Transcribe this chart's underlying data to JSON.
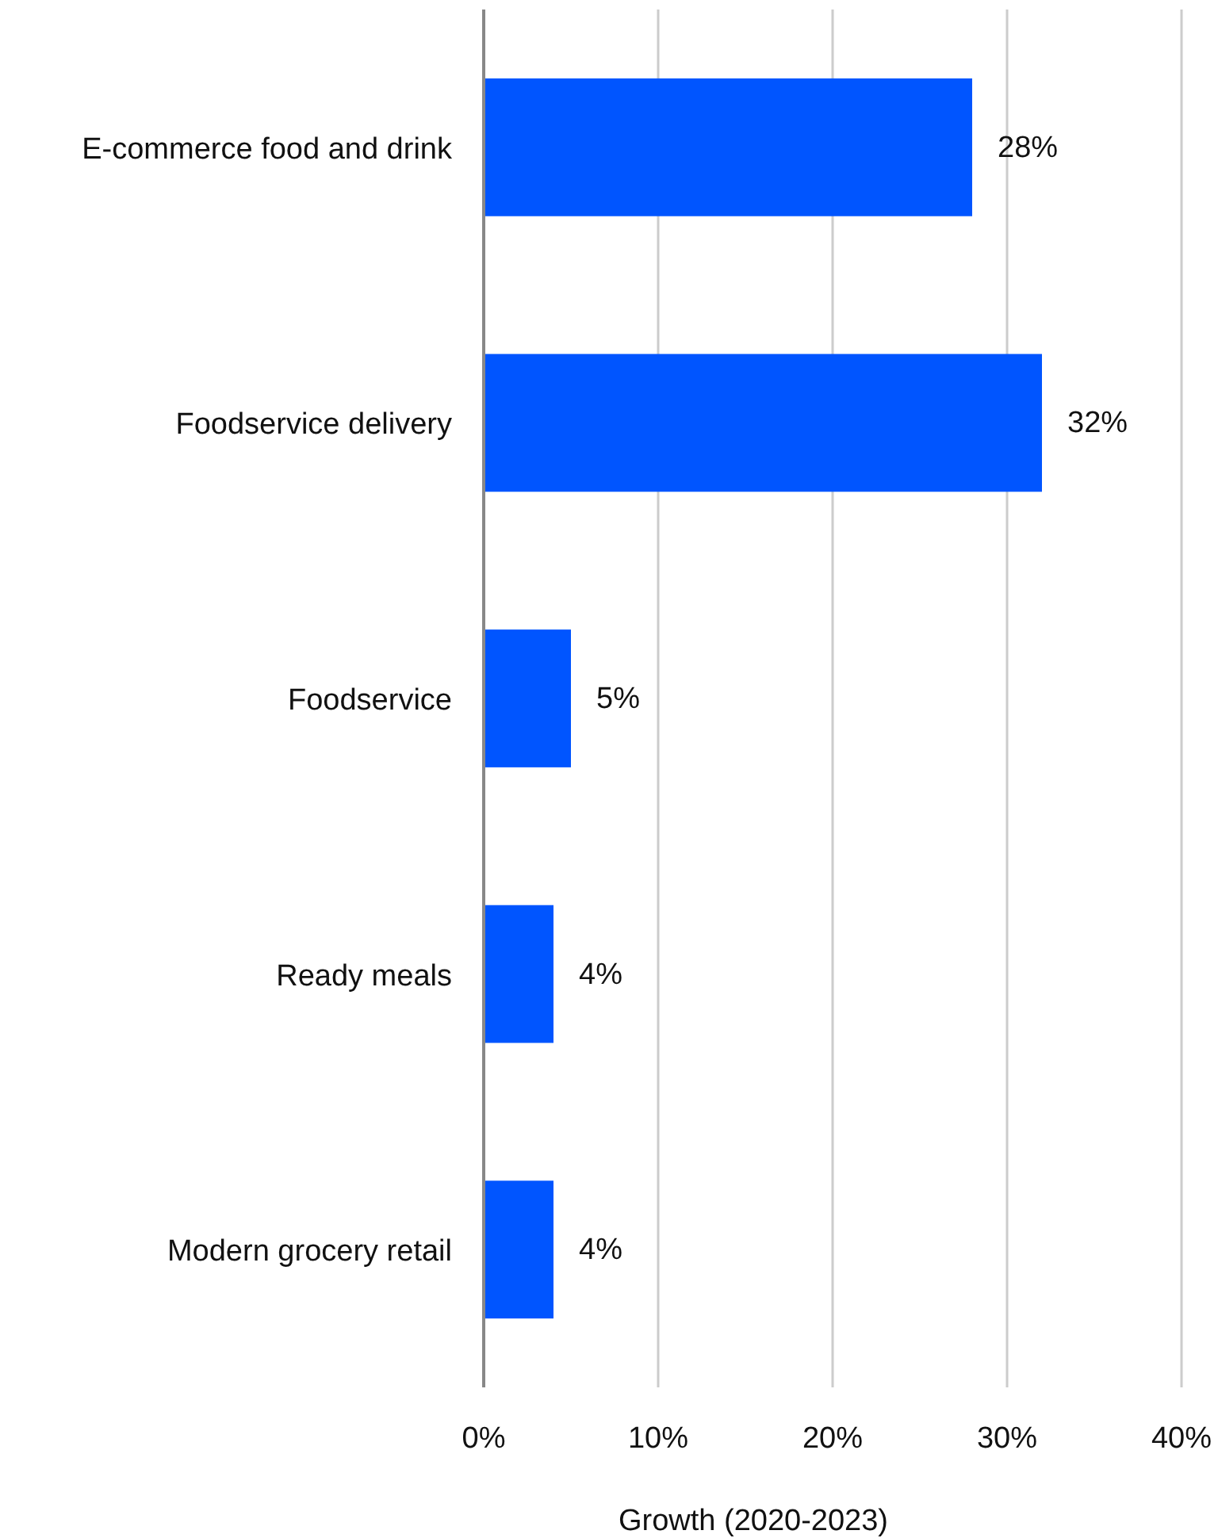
{
  "chart_data": {
    "type": "bar",
    "orientation": "horizontal",
    "xlabel": "Growth (2020-2023)",
    "categories": [
      "E-commerce food and drink",
      "Foodservice delivery",
      "Foodservice",
      "Ready meals",
      "Modern grocery retail"
    ],
    "values": [
      28,
      32,
      5,
      4,
      4
    ],
    "color": "#0055ff",
    "value_labels": [
      "28%",
      "32%",
      "5%",
      "4%",
      "4%"
    ],
    "xlim": [
      0,
      40
    ],
    "xticks": [
      {
        "value": 0,
        "label": "0%"
      },
      {
        "value": 10,
        "label": "10%"
      },
      {
        "value": 20,
        "label": "20%"
      },
      {
        "value": 30,
        "label": "30%"
      },
      {
        "value": 40,
        "label": "40%"
      }
    ],
    "grid": "x"
  }
}
